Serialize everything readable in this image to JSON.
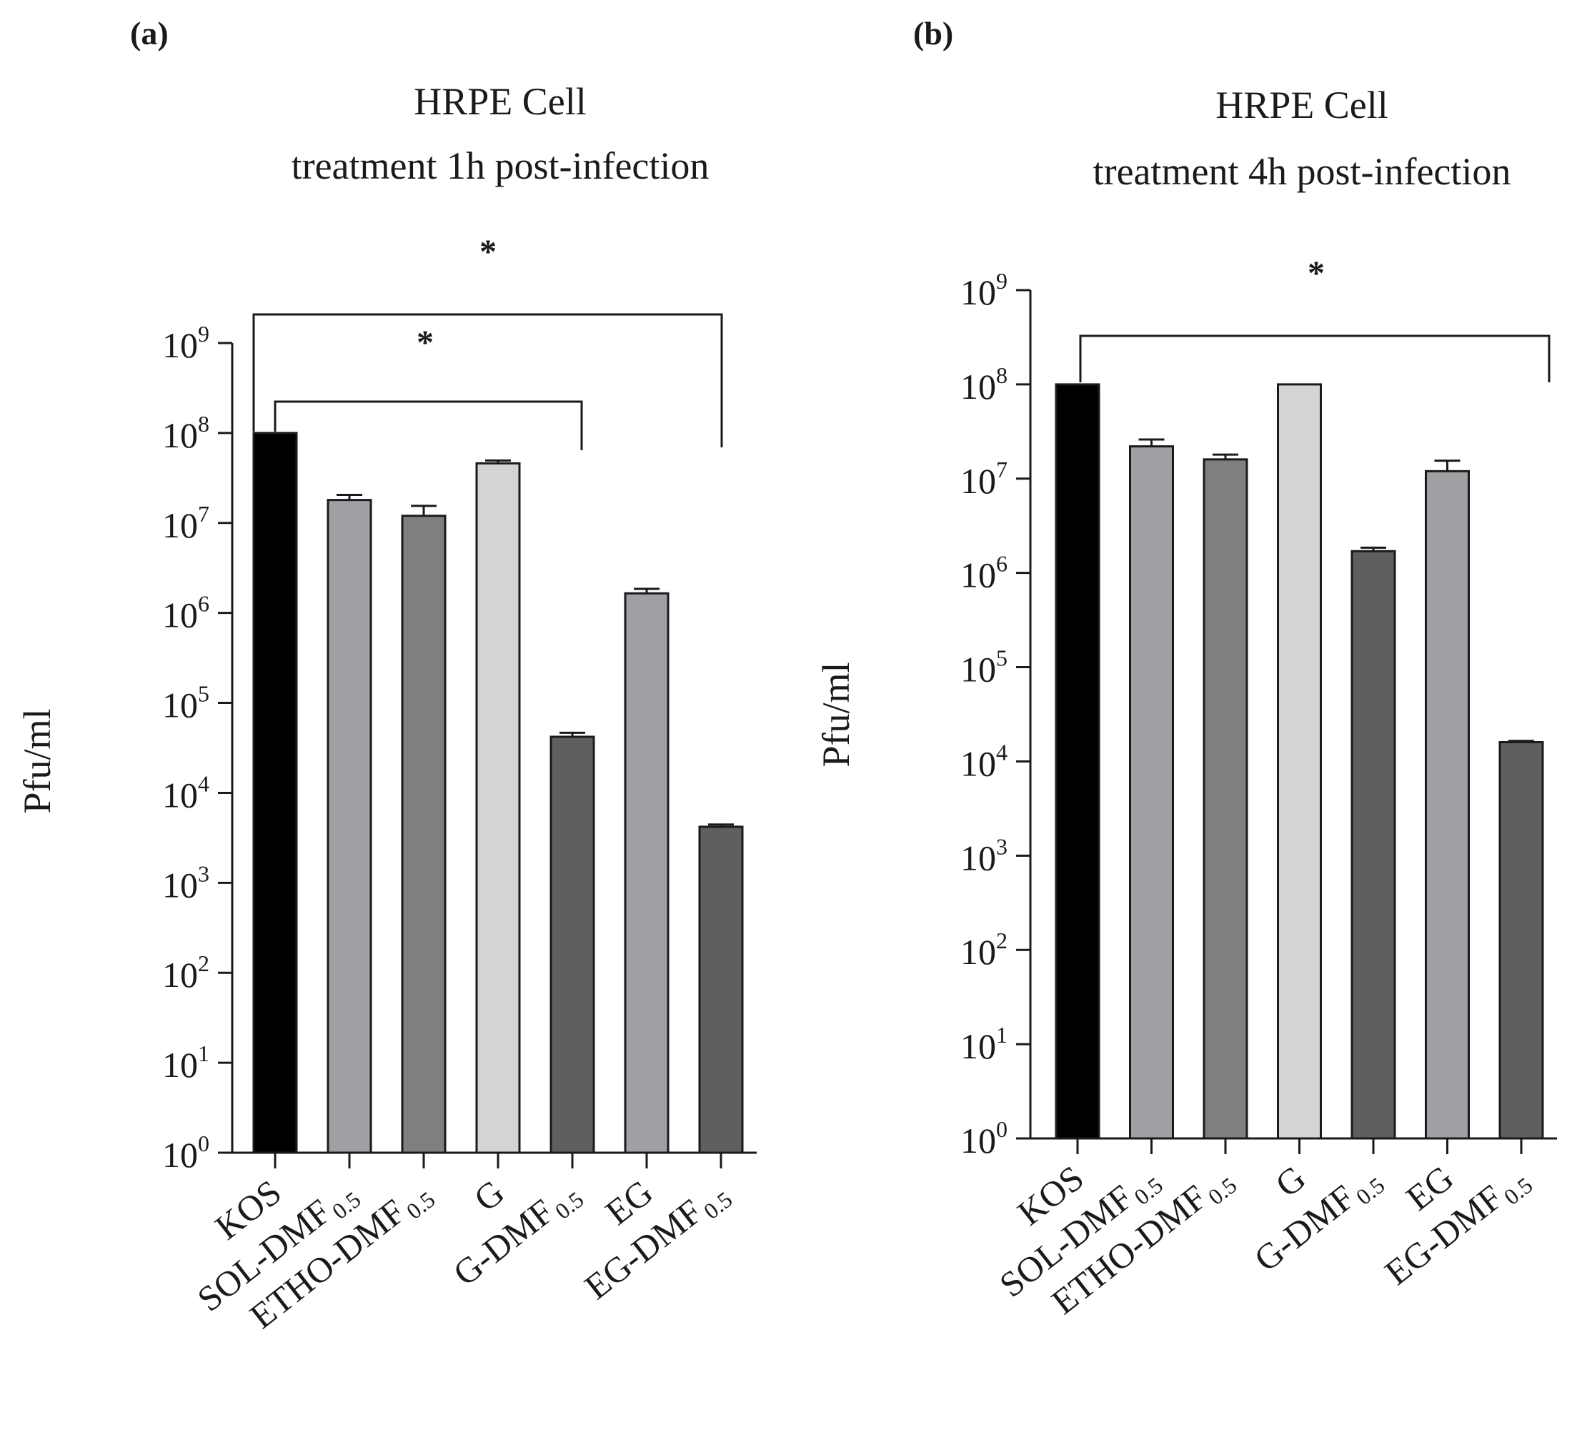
{
  "chart_data": [
    {
      "type": "bar",
      "panel": "(a)",
      "title": "HRPE Cell",
      "subtitle": "treatment 1h post-infection",
      "ylabel": "Pfu/ml",
      "xlabel": "",
      "yscale": "log",
      "ylim": [
        1,
        1000000000
      ],
      "yticks": [
        {
          "base": "10",
          "exp": "0",
          "value": 1
        },
        {
          "base": "10",
          "exp": "1",
          "value": 10
        },
        {
          "base": "10",
          "exp": "2",
          "value": 100
        },
        {
          "base": "10",
          "exp": "3",
          "value": 1000
        },
        {
          "base": "10",
          "exp": "4",
          "value": 10000
        },
        {
          "base": "10",
          "exp": "5",
          "value": 100000
        },
        {
          "base": "10",
          "exp": "6",
          "value": 1000000
        },
        {
          "base": "10",
          "exp": "7",
          "value": 10000000
        },
        {
          "base": "10",
          "exp": "8",
          "value": 100000000
        },
        {
          "base": "10",
          "exp": "9",
          "value": 1000000000
        }
      ],
      "categories": [
        {
          "name": "KOS",
          "sub": ""
        },
        {
          "name": "SOL-DMF",
          "sub": "0.5"
        },
        {
          "name": "ETHO-DMF",
          "sub": "0.5"
        },
        {
          "name": "G",
          "sub": ""
        },
        {
          "name": "G-DMF",
          "sub": "0.5"
        },
        {
          "name": "EG",
          "sub": ""
        },
        {
          "name": "EG-DMF",
          "sub": "0.5"
        }
      ],
      "values": [
        100000000,
        18000000,
        12000000,
        46000000,
        42000,
        1650000,
        4200
      ],
      "errors": [
        0,
        2500000,
        3500000,
        3500000,
        4500,
        200000,
        250
      ],
      "colors": [
        "#000000",
        "#a0a0a4",
        "#7f7f7f",
        "#d4d4d4",
        "#5f5f5f",
        "#a0a0a4",
        "#5f5f5f"
      ],
      "significance": [
        {
          "from": "KOS",
          "to": "G-DMF0.5",
          "label": "*"
        },
        {
          "from": "KOS",
          "to": "EG-DMF0.5",
          "label": "*"
        }
      ]
    },
    {
      "type": "bar",
      "panel": "(b)",
      "title": "HRPE Cell",
      "subtitle": "treatment 4h post-infection",
      "ylabel": "Pfu/ml",
      "xlabel": "",
      "yscale": "log",
      "ylim": [
        1,
        1000000000
      ],
      "yticks": [
        {
          "base": "10",
          "exp": "0",
          "value": 1
        },
        {
          "base": "10",
          "exp": "1",
          "value": 10
        },
        {
          "base": "10",
          "exp": "2",
          "value": 100
        },
        {
          "base": "10",
          "exp": "3",
          "value": 1000
        },
        {
          "base": "10",
          "exp": "4",
          "value": 10000
        },
        {
          "base": "10",
          "exp": "5",
          "value": 100000
        },
        {
          "base": "10",
          "exp": "6",
          "value": 1000000
        },
        {
          "base": "10",
          "exp": "7",
          "value": 10000000
        },
        {
          "base": "10",
          "exp": "8",
          "value": 100000000
        },
        {
          "base": "10",
          "exp": "9",
          "value": 1000000000
        }
      ],
      "categories": [
        {
          "name": "KOS",
          "sub": ""
        },
        {
          "name": "SOL-DMF",
          "sub": "0.5"
        },
        {
          "name": "ETHO-DMF",
          "sub": "0.5"
        },
        {
          "name": "G",
          "sub": ""
        },
        {
          "name": "G-DMF",
          "sub": "0.5"
        },
        {
          "name": "EG",
          "sub": ""
        },
        {
          "name": "EG-DMF",
          "sub": "0.5"
        }
      ],
      "values": [
        100000000,
        22000000,
        16000000,
        100000000,
        1700000,
        12000000,
        16000
      ],
      "errors": [
        0,
        4000000,
        2000000,
        0,
        150000,
        3500000,
        500
      ],
      "colors": [
        "#000000",
        "#a0a0a4",
        "#7f7f7f",
        "#d4d4d4",
        "#5f5f5f",
        "#a0a0a4",
        "#5f5f5f"
      ],
      "significance": [
        {
          "from": "KOS",
          "to": "EG-DMF0.5",
          "label": "*"
        }
      ]
    }
  ]
}
